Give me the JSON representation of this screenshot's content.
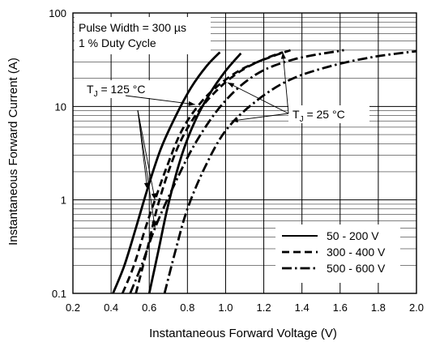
{
  "chart_data": {
    "type": "line",
    "xlabel": "Instantaneous Forward Voltage (V)",
    "ylabel": "Instantaneous Forward Current (A)",
    "xlim": [
      0.2,
      2.0
    ],
    "ylim": [
      0.1,
      100
    ],
    "yscale": "log",
    "grid": true,
    "x_ticks": [
      "0.2",
      "0.4",
      "0.6",
      "0.8",
      "1.0",
      "1.2",
      "1.4",
      "1.6",
      "1.8",
      "2.0"
    ],
    "y_ticks": [
      "0.1",
      "1",
      "10",
      "100"
    ],
    "legend_position": "bottom-right",
    "legend": [
      {
        "label": "50 - 200 V",
        "style": "solid"
      },
      {
        "label": "300 - 400 V",
        "style": "dashed"
      },
      {
        "label": "500 - 600 V",
        "style": "dashdot"
      }
    ],
    "annotations": {
      "conditions_line1": "Pulse Width = 300 µs",
      "conditions_line2": "1 % Duty Cycle",
      "tj_hot_prefix": "T",
      "tj_hot_sub": "J",
      "tj_hot_suffix": " = 125 °C",
      "tj_cold_prefix": "T",
      "tj_cold_sub": "J",
      "tj_cold_suffix": " = 25 °C"
    },
    "series": [
      {
        "name": "50 - 200 V",
        "temperature": "125 °C",
        "style": "solid",
        "x": [
          0.41,
          0.47,
          0.53,
          0.59,
          0.66,
          0.74,
          0.82,
          0.9,
          0.97
        ],
        "y": [
          0.1,
          0.2,
          0.5,
          1.3,
          3.5,
          8,
          16,
          27,
          38
        ]
      },
      {
        "name": "50 - 200 V",
        "temperature": "25 °C",
        "style": "solid",
        "x": [
          0.6,
          0.65,
          0.7,
          0.77,
          0.84,
          0.92,
          1.0,
          1.08
        ],
        "y": [
          0.1,
          0.3,
          0.9,
          3,
          7,
          14,
          24,
          37
        ]
      },
      {
        "name": "300 - 400 V",
        "temperature": "125 °C",
        "style": "dashed",
        "x": [
          0.46,
          0.52,
          0.58,
          0.63,
          0.69,
          0.77,
          0.87,
          0.98,
          1.1,
          1.24,
          1.34
        ],
        "y": [
          0.1,
          0.2,
          0.5,
          1.0,
          2.2,
          5.5,
          11,
          18,
          26,
          34,
          40
        ]
      },
      {
        "name": "300 - 400 V",
        "temperature": "25 °C",
        "style": "dashed",
        "x": [
          0.53,
          0.59,
          0.64,
          0.7,
          0.77,
          0.86,
          0.97,
          1.08,
          1.2,
          1.3
        ],
        "y": [
          0.1,
          0.3,
          0.8,
          2.0,
          4.5,
          9,
          16,
          24,
          32,
          38
        ]
      },
      {
        "name": "500 - 600 V",
        "temperature": "125 °C",
        "style": "dashdot",
        "x": [
          0.5,
          0.56,
          0.63,
          0.72,
          0.84,
          0.99,
          1.16,
          1.36,
          1.62
        ],
        "y": [
          0.1,
          0.2,
          0.5,
          1.3,
          4,
          11,
          22,
          32,
          40
        ]
      },
      {
        "name": "500 - 600 V",
        "temperature": "25 °C",
        "style": "dashdot",
        "x": [
          0.68,
          0.74,
          0.8,
          0.89,
          1.0,
          1.15,
          1.33,
          1.55,
          1.78,
          2.0
        ],
        "y": [
          0.1,
          0.3,
          0.8,
          2.2,
          5.5,
          11,
          19,
          27,
          34,
          39
        ]
      }
    ]
  }
}
